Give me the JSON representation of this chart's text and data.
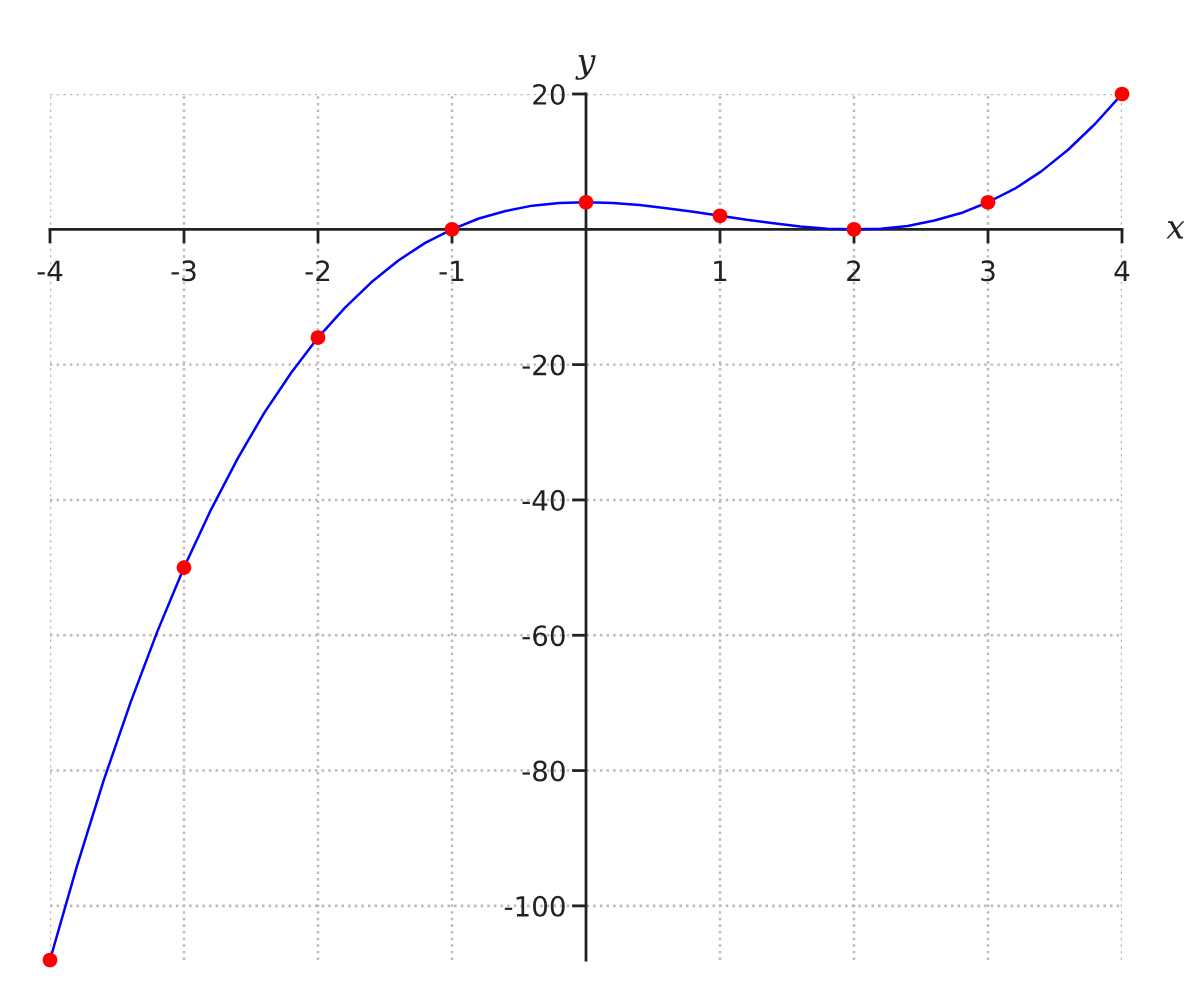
{
  "chart_data": {
    "type": "line",
    "xlabel": "x",
    "ylabel": "y",
    "xlim": [
      -4,
      4
    ],
    "ylim": [
      -108,
      20
    ],
    "xticks": [
      -4,
      -3,
      -2,
      -1,
      1,
      2,
      3,
      4
    ],
    "yticks": [
      -100,
      -80,
      -60,
      -40,
      -20,
      20
    ],
    "grid": true,
    "series": [
      {
        "color": "#0000ff",
        "marker": "none",
        "line_style": "solid",
        "x": [
          -4,
          -3.8,
          -3.6,
          -3.4,
          -3.2,
          -3,
          -2.8,
          -2.6,
          -2.4,
          -2.2,
          -2,
          -1.8,
          -1.6,
          -1.4,
          -1.2,
          -1,
          -0.8,
          -0.6,
          -0.4,
          -0.2,
          0,
          0.2,
          0.4,
          0.6,
          0.8,
          1,
          1.2,
          1.4,
          1.6,
          1.8,
          2,
          2.2,
          2.4,
          2.6,
          2.8,
          3,
          3.2,
          3.4,
          3.6,
          3.8,
          4
        ],
        "values": [
          -108,
          -94.2,
          -81.5,
          -70.0,
          -59.5,
          -50,
          -41.5,
          -33.9,
          -27.1,
          -21.2,
          -16,
          -11.6,
          -7.8,
          -4.6,
          -2.0,
          0,
          1.6,
          2.7,
          3.5,
          3.9,
          4,
          3.9,
          3.6,
          3.1,
          2.6,
          2,
          1.4,
          0.9,
          0.4,
          0.1,
          0,
          0.1,
          0.5,
          1.3,
          2.4,
          4,
          6.0,
          8.6,
          11.8,
          15.6,
          20
        ]
      },
      {
        "type": "scatter",
        "color": "#ff0000",
        "marker": "circle",
        "x": [
          -4,
          -3,
          -2,
          -1,
          0,
          1,
          2,
          3,
          4
        ],
        "values": [
          -108,
          -50,
          -16,
          0,
          4,
          2,
          0,
          4,
          20
        ]
      }
    ]
  }
}
